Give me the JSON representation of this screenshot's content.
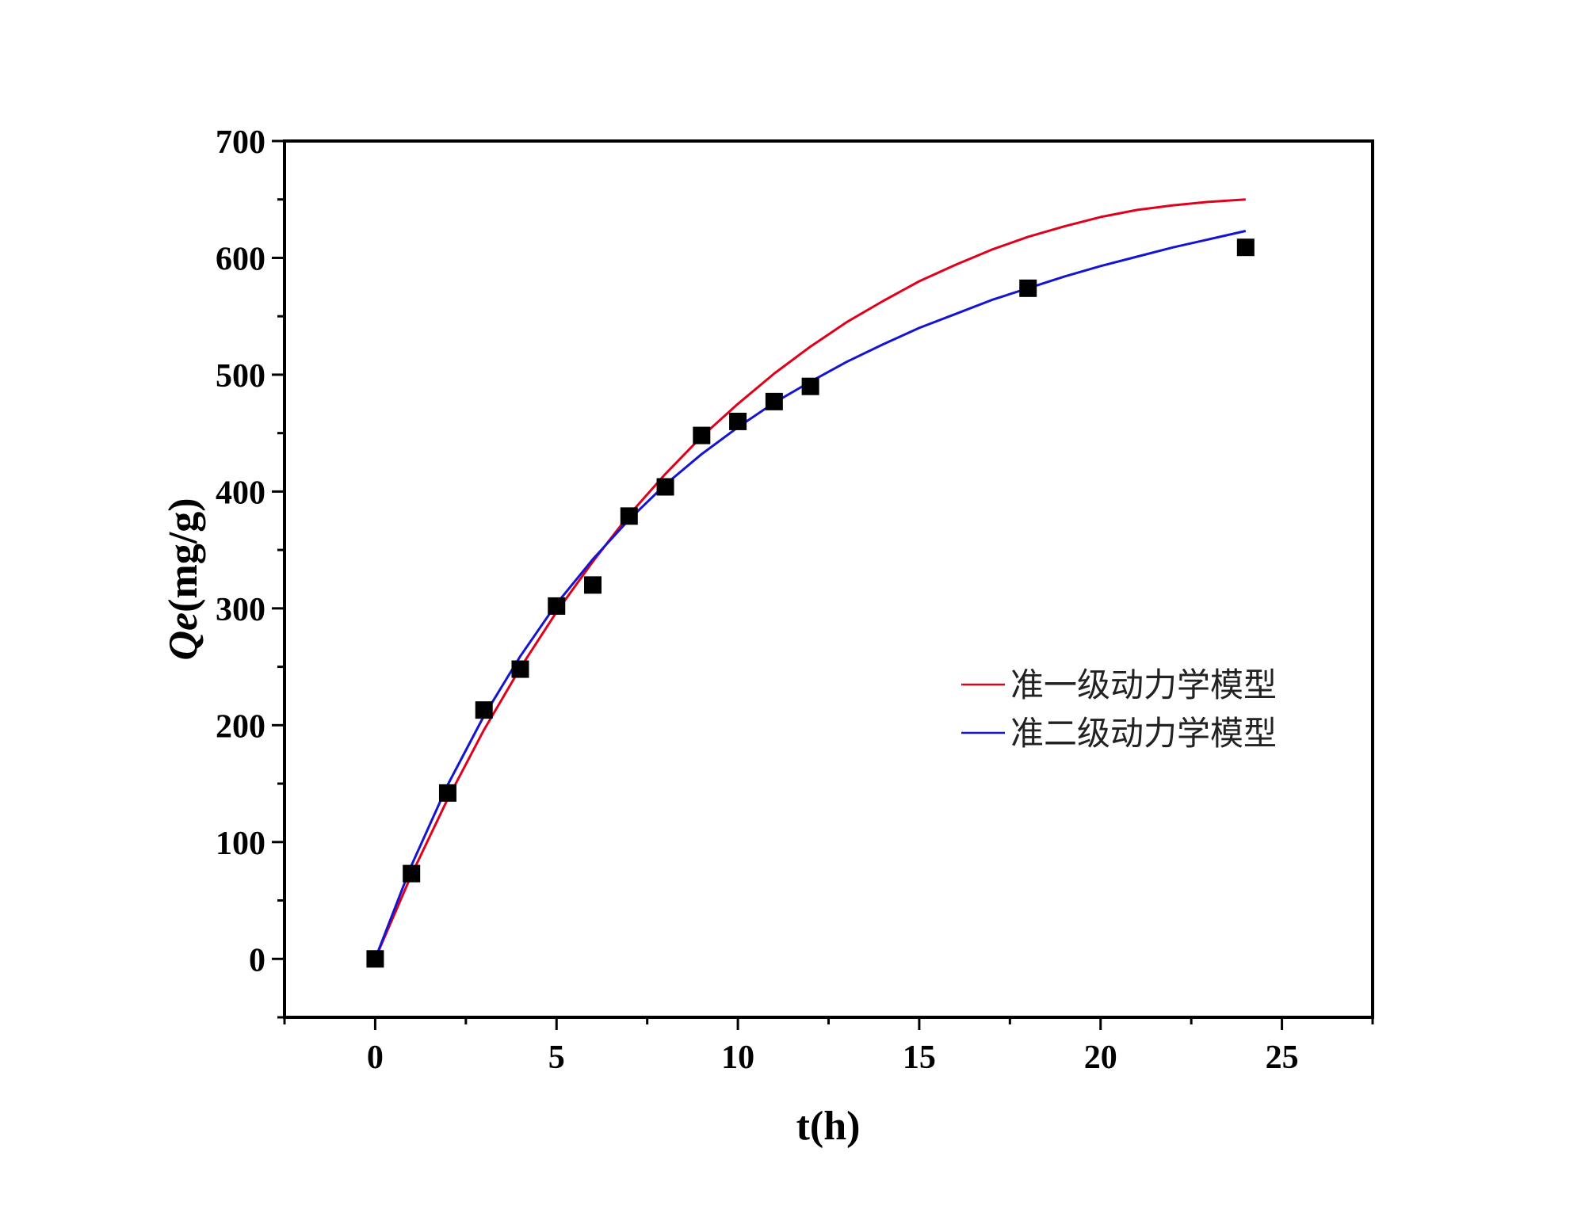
{
  "chart_data": {
    "type": "scatter",
    "xlabel": "t(h)",
    "ylabel_italic": "Qe",
    "ylabel_unit": "(mg/g)",
    "xlim": [
      -2.5,
      27.5
    ],
    "ylim": [
      -50,
      700
    ],
    "xticks": [
      0,
      5,
      10,
      15,
      20,
      25
    ],
    "yticks": [
      0,
      100,
      200,
      300,
      400,
      500,
      600,
      700
    ],
    "grid": false,
    "legend_position": "center-right",
    "points": {
      "marker": "square",
      "color": "#000000",
      "x": [
        0,
        1,
        2,
        3,
        4,
        5,
        6,
        7,
        8,
        9,
        10,
        11,
        12,
        18,
        24
      ],
      "y": [
        0,
        73,
        142,
        213,
        248,
        302,
        320,
        379,
        404,
        448,
        460,
        477,
        490,
        574,
        609
      ]
    },
    "series": [
      {
        "name": "准一级动力学模型",
        "color": "#e0001b",
        "x": [
          0,
          1,
          2,
          3,
          4,
          5,
          6,
          7,
          8,
          9,
          10,
          11,
          12,
          13,
          14,
          15,
          16,
          17,
          18,
          19,
          20,
          21,
          22,
          23,
          24
        ],
        "y": [
          0,
          72,
          137,
          196,
          249,
          297,
          340,
          380,
          415,
          447,
          475,
          501,
          524,
          545,
          563,
          580,
          594,
          607,
          618,
          627,
          635,
          641,
          645,
          648,
          650
        ]
      },
      {
        "name": "准二级动力学模型",
        "color": "#1414d2",
        "x": [
          0,
          1,
          2,
          3,
          4,
          5,
          6,
          7,
          8,
          9,
          10,
          11,
          12,
          13,
          14,
          15,
          16,
          17,
          18,
          19,
          20,
          21,
          22,
          23,
          24
        ],
        "y": [
          0,
          80,
          149,
          208,
          259,
          304,
          342,
          376,
          406,
          432,
          455,
          476,
          494,
          511,
          526,
          540,
          552,
          564,
          574,
          584,
          593,
          601,
          609,
          616,
          623
        ]
      }
    ]
  }
}
